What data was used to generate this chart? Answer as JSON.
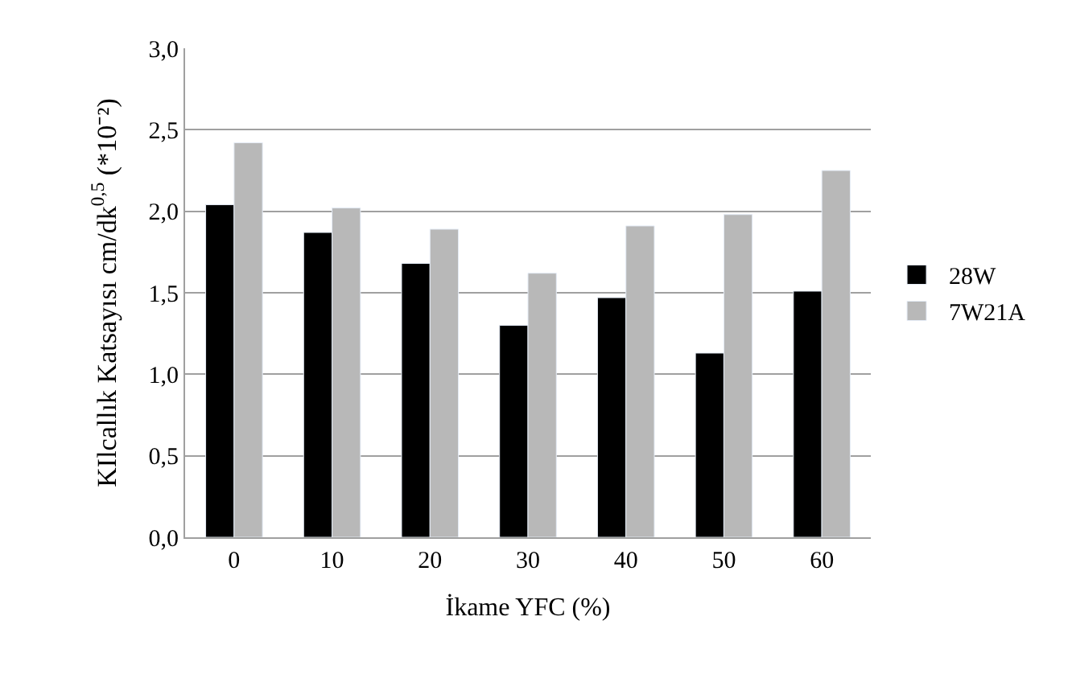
{
  "chart_data": {
    "type": "bar",
    "xlabel": "İkame YFC (%)",
    "ylabel": "KIlcallık Katsayısı cm/dk$^{0,5}$ (*10⁻²)",
    "categories": [
      "0",
      "10",
      "20",
      "30",
      "40",
      "50",
      "60"
    ],
    "series": [
      {
        "name": "28W",
        "color": "#000000",
        "values": [
          2.04,
          1.87,
          1.68,
          1.3,
          1.47,
          1.13,
          1.51
        ]
      },
      {
        "name": "7W21A",
        "color": "#b8b8b8",
        "values": [
          2.42,
          2.02,
          1.89,
          1.62,
          1.91,
          1.98,
          2.25
        ]
      }
    ],
    "ylim": [
      0,
      3
    ],
    "yticks": [
      {
        "value": 0,
        "label": "0,0"
      },
      {
        "value": 0.5,
        "label": "0,5"
      },
      {
        "value": 1,
        "label": "1,0"
      },
      {
        "value": 1.5,
        "label": "1,5"
      },
      {
        "value": 2,
        "label": "2,0"
      },
      {
        "value": 2.5,
        "label": "2,5"
      },
      {
        "value": 3,
        "label": "3,0"
      }
    ],
    "grid": "y",
    "legend": "right"
  }
}
